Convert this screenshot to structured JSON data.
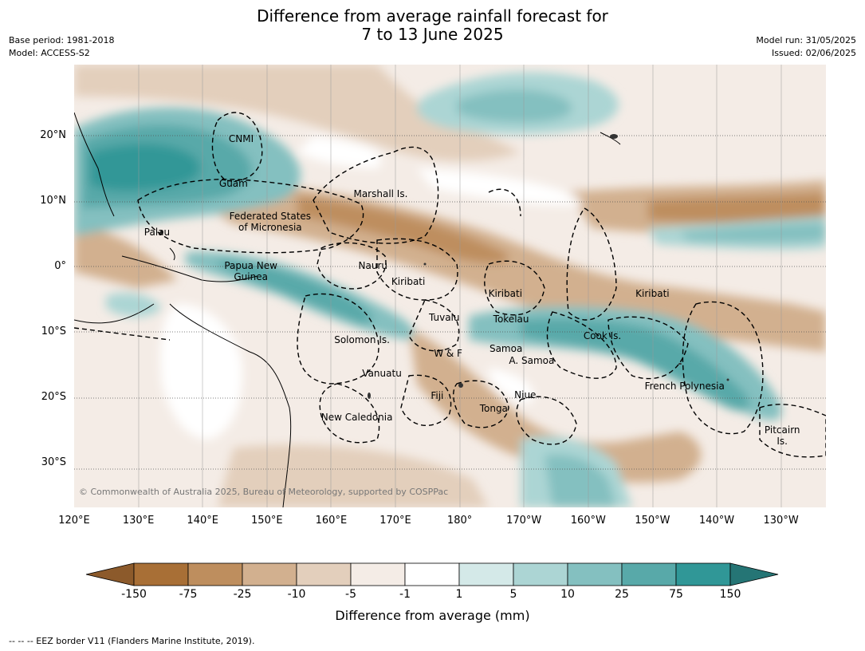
{
  "title": {
    "line1": "Difference from average rainfall forecast for",
    "line2": "7 to 13 June 2025"
  },
  "meta_left": {
    "base_period": "Base period: 1981-2018",
    "model": "Model: ACCESS-S2"
  },
  "meta_right": {
    "model_run": "Model run: 31/05/2025",
    "issued": "Issued: 02/06/2025"
  },
  "axes": {
    "lat_labels": [
      "20°N",
      "10°N",
      "0°",
      "10°S",
      "20°S",
      "30°S"
    ],
    "lon_labels": [
      "120°E",
      "130°E",
      "140°E",
      "150°E",
      "160°E",
      "170°E",
      "180°",
      "170°W",
      "160°W",
      "150°W",
      "140°W",
      "130°W"
    ]
  },
  "regions": [
    {
      "label": "CNMI",
      "lon": 146,
      "lat": 19.5
    },
    {
      "label": "Guam",
      "lon": 144.8,
      "lat": 12.7
    },
    {
      "label": "Marshall Is.",
      "lon": 167.7,
      "lat": 11.1
    },
    {
      "label": "Federated States\nof Micronesia",
      "lon": 150.5,
      "lat": 6.8
    },
    {
      "label": "Palau",
      "lon": 132.9,
      "lat": 5.2
    },
    {
      "label": "Nauru",
      "lon": 166.5,
      "lat": 0.1
    },
    {
      "label": "Papua New\nGuinea",
      "lon": 147.5,
      "lat": -0.7
    },
    {
      "label": "Kiribati",
      "lon": 172,
      "lat": -2.3
    },
    {
      "label": "Kiribati",
      "lon": -172.9,
      "lat": -4.2
    },
    {
      "label": "Kiribati",
      "lon": -150,
      "lat": -4.2
    },
    {
      "label": "Tuvalu",
      "lon": 177.6,
      "lat": -7.8
    },
    {
      "label": "Tokelau",
      "lon": -172,
      "lat": -8.1
    },
    {
      "label": "Cook Is.",
      "lon": -157.8,
      "lat": -10.6
    },
    {
      "label": "Solomon Is.",
      "lon": 164.8,
      "lat": -11.2
    },
    {
      "label": "Samoa",
      "lon": -172.8,
      "lat": -12.5
    },
    {
      "label": "W & F",
      "lon": 178.2,
      "lat": -13.3
    },
    {
      "label": "A. Samoa",
      "lon": -168.8,
      "lat": -14.4
    },
    {
      "label": "Vanuatu",
      "lon": 167.9,
      "lat": -16.3
    },
    {
      "label": "French Polynesia",
      "lon": -145,
      "lat": -18.3
    },
    {
      "label": "Fiji",
      "lon": 176.5,
      "lat": -19.7
    },
    {
      "label": "Niue",
      "lon": -169.8,
      "lat": -19.6
    },
    {
      "label": "Tonga",
      "lon": -174.7,
      "lat": -21.7
    },
    {
      "label": "New Caledonia",
      "lon": 164,
      "lat": -23.1
    },
    {
      "label": "Pitcairn\nIs.",
      "lon": -129.8,
      "lat": -25.9
    }
  ],
  "copyright": "© Commonwealth of Australia 2025, Bureau of Meteorology, supported by COSPPac",
  "colorbar": {
    "ticks": [
      "-150",
      "-75",
      "-25",
      "-10",
      "-5",
      "-1",
      "1",
      "5",
      "10",
      "25",
      "75",
      "150"
    ],
    "colors": [
      "#a86f36",
      "#be8e5e",
      "#d2b08f",
      "#e3cfbc",
      "#f4ece6",
      "#ffffff",
      "#d4e9e8",
      "#acd5d4",
      "#84c0c0",
      "#58a9a9",
      "#309797"
    ],
    "extend_low": "#8c5a2b",
    "extend_high": "#257575",
    "label": "Difference from average (mm)"
  },
  "footer": "--  --  -- EEZ border V11 (Flanders Marine Institute, 2019)."
}
